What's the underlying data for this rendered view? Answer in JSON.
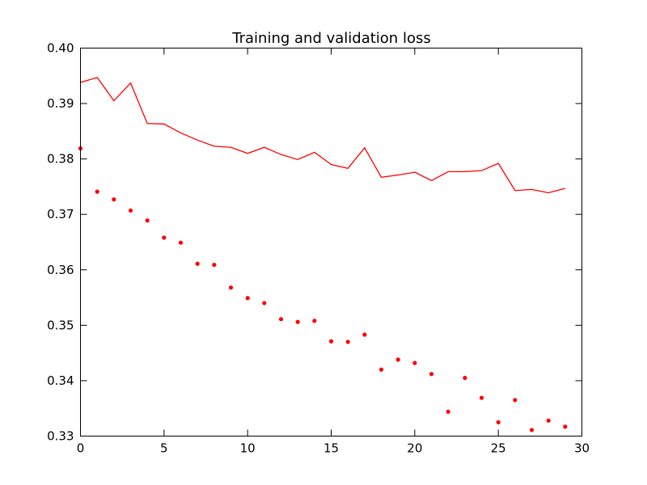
{
  "chart_data": {
    "type": "line",
    "title": "Training and validation loss",
    "xlabel": "",
    "ylabel": "",
    "xlim": [
      0,
      30
    ],
    "ylim": [
      0.33,
      0.4
    ],
    "x_ticks": [
      0,
      5,
      10,
      15,
      20,
      25,
      30
    ],
    "x_tick_labels": [
      "0",
      "5",
      "10",
      "15",
      "20",
      "25",
      "30"
    ],
    "y_ticks": [
      0.33,
      0.34,
      0.35,
      0.36,
      0.37,
      0.38,
      0.39,
      0.4
    ],
    "y_tick_labels": [
      "0.33",
      "0.34",
      "0.35",
      "0.36",
      "0.37",
      "0.38",
      "0.39",
      "0.40"
    ],
    "grid": false,
    "legend": "none",
    "series": [
      {
        "style": "dots",
        "color": "#ff0000",
        "x": [
          0,
          1,
          2,
          3,
          4,
          5,
          6,
          7,
          8,
          9,
          10,
          11,
          12,
          13,
          14,
          15,
          16,
          17,
          18,
          19,
          20,
          21,
          22,
          23,
          24,
          25,
          26,
          27,
          28,
          29
        ],
        "values": [
          0.3819,
          0.3741,
          0.3727,
          0.3707,
          0.3689,
          0.3658,
          0.3649,
          0.3611,
          0.3609,
          0.3568,
          0.3549,
          0.354,
          0.3511,
          0.3506,
          0.3508,
          0.3471,
          0.347,
          0.3483,
          0.342,
          0.3438,
          0.3432,
          0.3412,
          0.3344,
          0.3405,
          0.3369,
          0.3325,
          0.3365,
          0.3311,
          0.3328,
          0.3317
        ]
      },
      {
        "style": "line",
        "color": "#ff0000",
        "x": [
          0,
          1,
          2,
          3,
          4,
          5,
          6,
          7,
          8,
          9,
          10,
          11,
          12,
          13,
          14,
          15,
          16,
          17,
          18,
          19,
          20,
          21,
          22,
          23,
          24,
          25,
          26,
          27,
          28,
          29
        ],
        "values": [
          0.3938,
          0.3947,
          0.3905,
          0.3937,
          0.3864,
          0.3863,
          0.3847,
          0.3834,
          0.3823,
          0.3821,
          0.381,
          0.3821,
          0.3808,
          0.3799,
          0.3812,
          0.379,
          0.3783,
          0.382,
          0.3767,
          0.3771,
          0.3776,
          0.3761,
          0.3777,
          0.3777,
          0.3779,
          0.3792,
          0.3743,
          0.3745,
          0.3739,
          0.3747
        ]
      }
    ]
  }
}
